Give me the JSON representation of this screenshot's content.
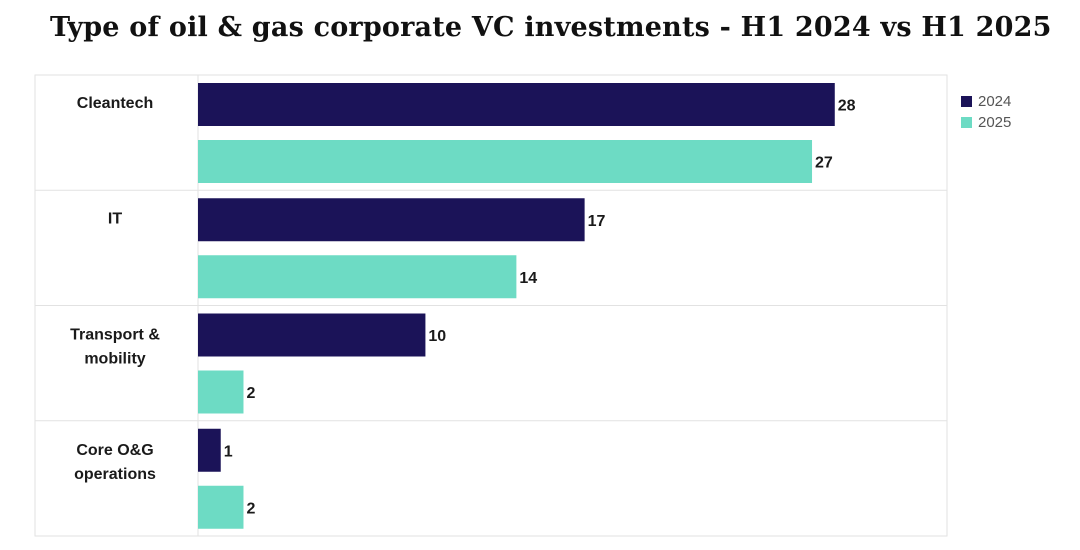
{
  "chart_data": {
    "type": "bar",
    "orientation": "horizontal",
    "title": "Type of oil & gas corporate VC investments - H1 2024 vs H1 2025",
    "categories": [
      [
        "Cleantech"
      ],
      [
        "IT"
      ],
      [
        "Transport &",
        "mobility"
      ],
      [
        "Core O&G",
        "operations"
      ]
    ],
    "series": [
      {
        "name": "2024",
        "color": "#1b1358",
        "values": [
          28,
          17,
          10,
          1
        ]
      },
      {
        "name": "2025",
        "color": "#6ddbc4",
        "values": [
          27,
          14,
          2,
          2
        ]
      }
    ],
    "xlim": [
      0,
      31
    ],
    "grid": false,
    "data_labels": true,
    "legend": "top-right"
  }
}
